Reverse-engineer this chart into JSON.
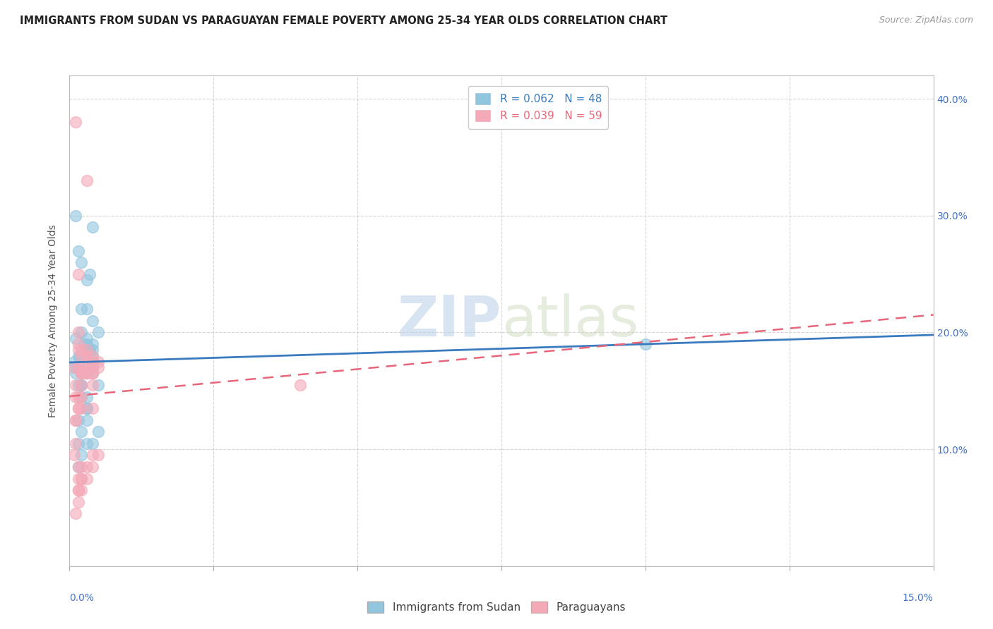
{
  "title": "IMMIGRANTS FROM SUDAN VS PARAGUAYAN FEMALE POVERTY AMONG 25-34 YEAR OLDS CORRELATION CHART",
  "source": "Source: ZipAtlas.com",
  "ylabel": "Female Poverty Among 25-34 Year Olds",
  "legend_label1": "Immigrants from Sudan",
  "legend_label2": "Paraguayans",
  "blue_color": "#92c5de",
  "pink_color": "#f4a9b8",
  "blue_line_color": "#3a7abf",
  "pink_line_color": "#e8667a",
  "watermark_zip": "ZIP",
  "watermark_atlas": "atlas",
  "xlim": [
    0.0,
    0.15
  ],
  "ylim": [
    0.0,
    0.42
  ],
  "xticks": [
    0.0,
    0.025,
    0.05,
    0.075,
    0.1,
    0.125,
    0.15
  ],
  "yticks": [
    0.0,
    0.1,
    0.2,
    0.3,
    0.4
  ],
  "blue_scatter_x": [
    0.0008,
    0.0015,
    0.001,
    0.002,
    0.0025,
    0.003,
    0.002,
    0.0035,
    0.003,
    0.004,
    0.002,
    0.003,
    0.0035,
    0.002,
    0.0015,
    0.001,
    0.0018,
    0.002,
    0.003,
    0.0015,
    0.001,
    0.002,
    0.003,
    0.004,
    0.004,
    0.005,
    0.004,
    0.003,
    0.002,
    0.0015,
    0.004,
    0.003,
    0.003,
    0.002,
    0.005,
    0.004,
    0.004,
    0.003,
    0.005,
    0.002,
    0.0015,
    0.001,
    0.003,
    0.004,
    0.004,
    0.1,
    0.0015,
    0.003
  ],
  "blue_scatter_y": [
    0.175,
    0.18,
    0.165,
    0.2,
    0.19,
    0.22,
    0.155,
    0.185,
    0.165,
    0.175,
    0.145,
    0.135,
    0.25,
    0.155,
    0.27,
    0.195,
    0.18,
    0.26,
    0.245,
    0.125,
    0.17,
    0.22,
    0.17,
    0.175,
    0.29,
    0.155,
    0.21,
    0.19,
    0.165,
    0.155,
    0.185,
    0.135,
    0.125,
    0.115,
    0.115,
    0.18,
    0.165,
    0.145,
    0.2,
    0.095,
    0.085,
    0.3,
    0.105,
    0.105,
    0.19,
    0.19,
    0.105,
    0.195
  ],
  "pink_scatter_x": [
    0.0008,
    0.0015,
    0.001,
    0.002,
    0.0015,
    0.003,
    0.002,
    0.001,
    0.0015,
    0.002,
    0.003,
    0.0015,
    0.001,
    0.0015,
    0.002,
    0.003,
    0.004,
    0.002,
    0.0015,
    0.001,
    0.0008,
    0.0015,
    0.002,
    0.003,
    0.002,
    0.0015,
    0.001,
    0.002,
    0.003,
    0.004,
    0.004,
    0.002,
    0.0015,
    0.001,
    0.003,
    0.004,
    0.002,
    0.0015,
    0.003,
    0.002,
    0.0015,
    0.004,
    0.004,
    0.003,
    0.004,
    0.002,
    0.0015,
    0.005,
    0.004,
    0.04,
    0.003,
    0.004,
    0.002,
    0.0015,
    0.005,
    0.004,
    0.005,
    0.004,
    0.001
  ],
  "pink_scatter_y": [
    0.17,
    0.2,
    0.155,
    0.18,
    0.25,
    0.18,
    0.165,
    0.145,
    0.19,
    0.135,
    0.165,
    0.17,
    0.125,
    0.135,
    0.17,
    0.165,
    0.165,
    0.155,
    0.145,
    0.105,
    0.095,
    0.085,
    0.185,
    0.17,
    0.165,
    0.185,
    0.38,
    0.165,
    0.185,
    0.155,
    0.175,
    0.145,
    0.135,
    0.125,
    0.18,
    0.17,
    0.085,
    0.075,
    0.085,
    0.075,
    0.065,
    0.18,
    0.17,
    0.075,
    0.135,
    0.065,
    0.055,
    0.175,
    0.17,
    0.155,
    0.33,
    0.095,
    0.075,
    0.065,
    0.095,
    0.085,
    0.17,
    0.165,
    0.045
  ]
}
